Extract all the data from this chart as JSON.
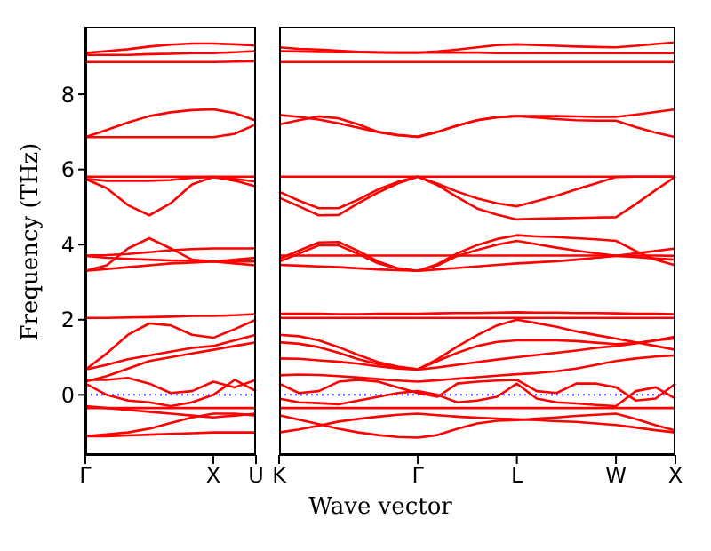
{
  "chart_data": [
    {
      "type": "line",
      "ylabel": "Frequency (THz)",
      "categories": [
        "Γ",
        null,
        null,
        null,
        null,
        null,
        "X",
        null,
        "U"
      ],
      "ylim": [
        -1.6,
        9.8
      ],
      "yticks": [
        0,
        2,
        4,
        6,
        8
      ],
      "ref_lines": [
        {
          "axis": "y",
          "value": 0,
          "color": "#0000ff",
          "line_style": "dotted"
        }
      ],
      "series": [
        {
          "color": "#ff0000",
          "values": [
            9.1,
            9.15,
            9.2,
            9.27,
            9.32,
            9.35,
            9.35,
            9.33,
            9.3
          ]
        },
        {
          "color": "#ff0000",
          "values": [
            9.05,
            9.05,
            9.05,
            9.07,
            9.08,
            9.1,
            9.1,
            9.12,
            9.15
          ]
        },
        {
          "color": "#ff0000",
          "values": [
            8.86,
            8.86,
            8.86,
            8.86,
            8.86,
            8.86,
            8.86,
            8.87,
            8.88
          ]
        },
        {
          "color": "#ff0000",
          "values": [
            6.86,
            7.05,
            7.25,
            7.42,
            7.52,
            7.58,
            7.6,
            7.5,
            7.3
          ]
        },
        {
          "color": "#ff0000",
          "values": [
            6.86,
            6.86,
            6.86,
            6.86,
            6.86,
            6.86,
            6.86,
            6.95,
            7.2
          ]
        },
        {
          "color": "#ff0000",
          "values": [
            5.81,
            5.81,
            5.81,
            5.81,
            5.81,
            5.81,
            5.81,
            5.81,
            5.81
          ]
        },
        {
          "color": "#ff0000",
          "values": [
            5.75,
            5.5,
            5.05,
            4.78,
            5.1,
            5.6,
            5.8,
            5.7,
            5.55
          ]
        },
        {
          "color": "#ff0000",
          "values": [
            5.75,
            5.7,
            5.7,
            5.7,
            5.72,
            5.78,
            5.8,
            5.75,
            5.68
          ]
        },
        {
          "color": "#ff0000",
          "values": [
            3.71,
            3.72,
            3.75,
            3.8,
            3.85,
            3.88,
            3.9,
            3.9,
            3.9
          ]
        },
        {
          "color": "#ff0000",
          "values": [
            3.3,
            3.45,
            3.9,
            4.17,
            3.9,
            3.6,
            3.55,
            3.6,
            3.65
          ]
        },
        {
          "color": "#ff0000",
          "values": [
            3.3,
            3.35,
            3.4,
            3.45,
            3.5,
            3.52,
            3.55,
            3.5,
            3.45
          ]
        },
        {
          "color": "#ff0000",
          "values": [
            3.7,
            3.65,
            3.62,
            3.6,
            3.58,
            3.57,
            3.55,
            3.55,
            3.55
          ]
        },
        {
          "color": "#ff0000",
          "values": [
            2.05,
            2.05,
            2.06,
            2.07,
            2.08,
            2.1,
            2.1,
            2.12,
            2.15
          ]
        },
        {
          "color": "#ff0000",
          "values": [
            0.67,
            1.1,
            1.6,
            1.9,
            1.85,
            1.6,
            1.52,
            1.75,
            2.0
          ]
        },
        {
          "color": "#ff0000",
          "values": [
            0.67,
            0.8,
            0.95,
            1.05,
            1.15,
            1.25,
            1.3,
            1.45,
            1.6
          ]
        },
        {
          "color": "#ff0000",
          "values": [
            0.35,
            0.5,
            0.7,
            0.9,
            1.0,
            1.1,
            1.2,
            1.3,
            1.4
          ]
        },
        {
          "color": "#ff0000",
          "values": [
            0.4,
            0.4,
            0.45,
            0.3,
            0.05,
            0.1,
            0.35,
            0.2,
            0.4
          ]
        },
        {
          "color": "#ff0000",
          "values": [
            0.3,
            0.0,
            -0.15,
            -0.2,
            -0.3,
            -0.2,
            0.0,
            0.4,
            0.1
          ]
        },
        {
          "color": "#ff0000",
          "values": [
            -0.35,
            -0.35,
            -0.35,
            -0.35,
            -0.35,
            -0.35,
            -0.35,
            -0.35,
            -0.35
          ]
        },
        {
          "color": "#ff0000",
          "values": [
            -0.3,
            -0.35,
            -0.4,
            -0.45,
            -0.5,
            -0.55,
            -0.6,
            -0.55,
            -0.5
          ]
        },
        {
          "color": "#ff0000",
          "values": [
            -1.1,
            -1.05,
            -1.0,
            -0.9,
            -0.75,
            -0.6,
            -0.5,
            -0.5,
            -0.55
          ]
        },
        {
          "color": "#ff0000",
          "values": [
            -1.1,
            -1.1,
            -1.08,
            -1.06,
            -1.04,
            -1.02,
            -1.0,
            -1.0,
            -1.0
          ]
        }
      ]
    },
    {
      "type": "line",
      "xlabel": "Wave vector",
      "tick_labels": "x",
      "categories": [
        "K",
        null,
        null,
        null,
        null,
        null,
        null,
        "Γ",
        null,
        null,
        null,
        null,
        "L",
        null,
        null,
        null,
        null,
        "W",
        null,
        null,
        "X"
      ],
      "ylim": [
        -1.6,
        9.8
      ],
      "yticks": [
        0,
        2,
        4,
        6,
        8
      ],
      "ref_lines": [
        {
          "axis": "y",
          "value": 0,
          "color": "#0000ff",
          "line_style": "dotted"
        }
      ],
      "series": [
        {
          "color": "#ff0000",
          "values": [
            9.25,
            9.21,
            9.19,
            9.16,
            9.13,
            9.12,
            9.11,
            9.11,
            9.14,
            9.19,
            9.25,
            9.31,
            9.33,
            9.31,
            9.29,
            9.27,
            9.26,
            9.25,
            9.29,
            9.34,
            9.38
          ]
        },
        {
          "color": "#ff0000",
          "values": [
            9.15,
            9.14,
            9.13,
            9.12,
            9.12,
            9.11,
            9.11,
            9.11,
            9.11,
            9.11,
            9.11,
            9.1,
            9.1,
            9.1,
            9.1,
            9.1,
            9.1,
            9.1,
            9.1,
            9.1,
            9.1
          ]
        },
        {
          "color": "#ff0000",
          "values": [
            8.86,
            8.86,
            8.86,
            8.86,
            8.86,
            8.86,
            8.86,
            8.86,
            8.86,
            8.86,
            8.86,
            8.86,
            8.86,
            8.86,
            8.86,
            8.86,
            8.86,
            8.86,
            8.86,
            8.86,
            8.86
          ]
        },
        {
          "color": "#ff0000",
          "values": [
            7.2,
            7.31,
            7.41,
            7.36,
            7.2,
            7.0,
            6.92,
            6.87,
            7.0,
            7.17,
            7.31,
            7.39,
            7.42,
            7.42,
            7.42,
            7.41,
            7.4,
            7.4,
            7.46,
            7.53,
            7.6
          ]
        },
        {
          "color": "#ff0000",
          "values": [
            7.45,
            7.4,
            7.33,
            7.23,
            7.11,
            6.99,
            6.91,
            6.87,
            7.0,
            7.17,
            7.31,
            7.39,
            7.42,
            7.38,
            7.34,
            7.31,
            7.3,
            7.3,
            7.13,
            6.98,
            6.86
          ]
        },
        {
          "color": "#ff0000",
          "values": [
            5.81,
            5.81,
            5.81,
            5.81,
            5.81,
            5.81,
            5.81,
            5.81,
            5.81,
            5.81,
            5.81,
            5.81,
            5.81,
            5.81,
            5.81,
            5.81,
            5.81,
            5.81,
            5.81,
            5.81,
            5.81
          ]
        },
        {
          "color": "#ff0000",
          "values": [
            5.41,
            5.17,
            4.97,
            4.97,
            5.2,
            5.47,
            5.67,
            5.81,
            5.62,
            5.41,
            5.23,
            5.1,
            5.02,
            5.16,
            5.3,
            5.47,
            5.63,
            5.8,
            5.81,
            5.81,
            5.81
          ]
        },
        {
          "color": "#ff0000",
          "values": [
            5.25,
            5.02,
            4.78,
            4.79,
            5.1,
            5.39,
            5.63,
            5.81,
            5.58,
            5.26,
            4.96,
            4.8,
            4.67,
            4.69,
            4.7,
            4.71,
            4.72,
            4.73,
            5.08,
            5.45,
            5.81
          ]
        },
        {
          "color": "#ff0000",
          "values": [
            3.71,
            3.71,
            3.71,
            3.71,
            3.71,
            3.71,
            3.71,
            3.71,
            3.71,
            3.71,
            3.71,
            3.71,
            3.71,
            3.71,
            3.71,
            3.71,
            3.71,
            3.71,
            3.71,
            3.71,
            3.7
          ]
        },
        {
          "color": "#ff0000",
          "values": [
            3.62,
            3.84,
            4.06,
            4.07,
            3.83,
            3.55,
            3.37,
            3.3,
            3.48,
            3.77,
            3.99,
            4.15,
            4.25,
            4.22,
            4.2,
            4.17,
            4.14,
            4.1,
            3.83,
            3.6,
            3.45
          ]
        },
        {
          "color": "#ff0000",
          "values": [
            3.55,
            3.76,
            3.98,
            3.98,
            3.75,
            3.5,
            3.36,
            3.3,
            3.45,
            3.7,
            3.86,
            4.0,
            4.1,
            4.01,
            3.92,
            3.84,
            3.77,
            3.7,
            3.67,
            3.63,
            3.6
          ]
        },
        {
          "color": "#ff0000",
          "values": [
            3.46,
            3.44,
            3.42,
            3.4,
            3.37,
            3.34,
            3.32,
            3.3,
            3.34,
            3.38,
            3.42,
            3.46,
            3.5,
            3.53,
            3.56,
            3.6,
            3.65,
            3.7,
            3.77,
            3.83,
            3.9
          ]
        },
        {
          "color": "#ff0000",
          "values": [
            2.16,
            2.16,
            2.16,
            2.15,
            2.15,
            2.16,
            2.16,
            2.16,
            2.17,
            2.18,
            2.18,
            2.19,
            2.2,
            2.19,
            2.19,
            2.18,
            2.18,
            2.17,
            2.16,
            2.16,
            2.15
          ]
        },
        {
          "color": "#ff0000",
          "values": [
            2.05,
            2.05,
            2.05,
            2.05,
            2.05,
            2.05,
            2.05,
            2.05,
            2.05,
            2.05,
            2.05,
            2.05,
            2.05,
            2.05,
            2.05,
            2.05,
            2.05,
            2.05,
            2.05,
            2.05,
            2.05
          ]
        },
        {
          "color": "#ff0000",
          "values": [
            1.6,
            1.56,
            1.45,
            1.27,
            1.06,
            0.87,
            0.75,
            0.68,
            0.95,
            1.29,
            1.59,
            1.85,
            2.0,
            1.91,
            1.81,
            1.69,
            1.59,
            1.5,
            1.4,
            1.3,
            1.2
          ]
        },
        {
          "color": "#ff0000",
          "values": [
            1.4,
            1.36,
            1.27,
            1.12,
            0.95,
            0.82,
            0.73,
            0.68,
            0.9,
            1.12,
            1.3,
            1.41,
            1.45,
            1.45,
            1.45,
            1.43,
            1.39,
            1.35,
            1.38,
            1.45,
            1.5
          ]
        },
        {
          "color": "#ff0000",
          "values": [
            0.97,
            0.96,
            0.92,
            0.88,
            0.83,
            0.76,
            0.7,
            0.67,
            0.73,
            0.8,
            0.87,
            0.94,
            1.0,
            1.06,
            1.12,
            1.18,
            1.25,
            1.3,
            1.37,
            1.45,
            1.55
          ]
        },
        {
          "color": "#ff0000",
          "values": [
            0.52,
            0.54,
            0.53,
            0.5,
            0.46,
            0.42,
            0.38,
            0.35,
            0.39,
            0.43,
            0.47,
            0.51,
            0.55,
            0.58,
            0.63,
            0.7,
            0.8,
            0.9,
            0.97,
            1.02,
            1.05
          ]
        },
        {
          "color": "#ff0000",
          "values": [
            0.3,
            0.05,
            0.1,
            0.35,
            0.4,
            0.35,
            0.2,
            0.05,
            -0.05,
            0.3,
            0.35,
            0.38,
            0.4,
            0.1,
            0.05,
            0.3,
            0.3,
            0.2,
            -0.15,
            -0.1,
            0.3
          ]
        },
        {
          "color": "#ff0000",
          "values": [
            -0.1,
            -0.2,
            -0.22,
            -0.25,
            -0.15,
            -0.05,
            0.05,
            0.1,
            0.0,
            -0.2,
            -0.15,
            -0.05,
            0.3,
            -0.1,
            -0.2,
            -0.23,
            -0.27,
            -0.3,
            0.1,
            0.2,
            -0.1
          ]
        },
        {
          "color": "#ff0000",
          "values": [
            -0.35,
            -0.35,
            -0.35,
            -0.35,
            -0.35,
            -0.35,
            -0.35,
            -0.35,
            -0.35,
            -0.35,
            -0.35,
            -0.35,
            -0.35,
            -0.35,
            -0.35,
            -0.35,
            -0.35,
            -0.35,
            -0.35,
            -0.35,
            -0.35
          ]
        },
        {
          "color": "#ff0000",
          "values": [
            -0.54,
            -0.66,
            -0.78,
            -0.9,
            -1.0,
            -1.07,
            -1.12,
            -1.14,
            -1.07,
            -0.9,
            -0.76,
            -0.69,
            -0.67,
            -0.63,
            -0.6,
            -0.56,
            -0.53,
            -0.5,
            -0.64,
            -0.81,
            -0.95
          ]
        },
        {
          "color": "#ff0000",
          "values": [
            -1.0,
            -0.92,
            -0.82,
            -0.71,
            -0.64,
            -0.58,
            -0.53,
            -0.5,
            -0.54,
            -0.58,
            -0.61,
            -0.63,
            -0.65,
            -0.67,
            -0.7,
            -0.72,
            -0.76,
            -0.8,
            -0.87,
            -0.94,
            -1.0
          ]
        }
      ]
    }
  ]
}
